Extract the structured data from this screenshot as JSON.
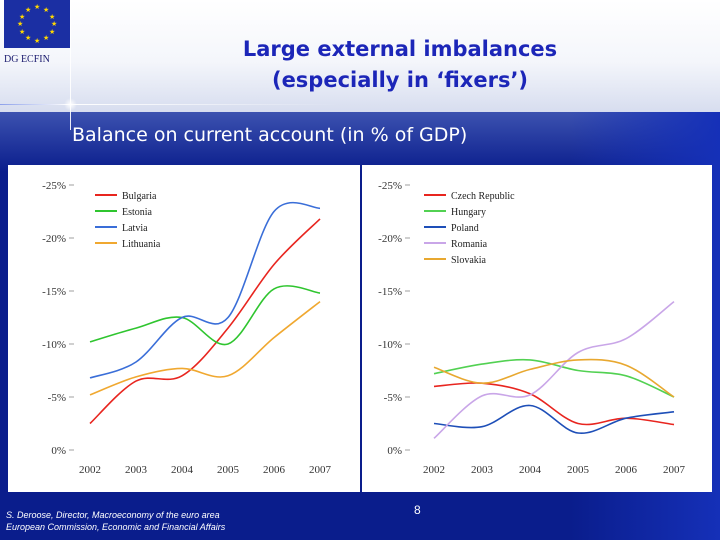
{
  "header": {
    "org_label": "DG ECFIN",
    "title_line1": "Large external imbalances",
    "title_line2": "(especially in ‘fixers’)",
    "subtitle": "Balance on current account (in % of GDP)"
  },
  "footer": {
    "line1": "S. Deroose, Director, Macroeconomy of the euro area",
    "line2": "European Commission, Economic and Financial Affairs",
    "page_number": "8"
  },
  "chart_data": [
    {
      "type": "line",
      "title": "",
      "x": [
        2002,
        2003,
        2004,
        2005,
        2006,
        2007
      ],
      "x_tick_labels": [
        "2002",
        "2003",
        "2004",
        "2005",
        "2006",
        "2007"
      ],
      "y_tick_labels": [
        "-25%",
        "-20%",
        "-15%",
        "-10%",
        "-5%",
        "0%"
      ],
      "ylim": [
        0,
        -25
      ],
      "ylabel": "",
      "legend_position": "top-left",
      "series": [
        {
          "name": "Bulgaria",
          "color": "#e8251f",
          "values": [
            -2.5,
            -6.5,
            -7.0,
            -11.5,
            -17.5,
            -21.8
          ]
        },
        {
          "name": "Estonia",
          "color": "#2fc52f",
          "values": [
            -10.2,
            -11.5,
            -12.5,
            -10.0,
            -15.2,
            -14.8
          ]
        },
        {
          "name": "Latvia",
          "color": "#3a6ed8",
          "values": [
            -6.8,
            -8.3,
            -12.5,
            -12.5,
            -22.5,
            -22.8
          ]
        },
        {
          "name": "Lithuania",
          "color": "#f0a830",
          "values": [
            -5.2,
            -6.9,
            -7.7,
            -7.0,
            -10.6,
            -14.0
          ]
        }
      ]
    },
    {
      "type": "line",
      "title": "",
      "x": [
        2002,
        2003,
        2004,
        2005,
        2006,
        2007
      ],
      "x_tick_labels": [
        "2002",
        "2003",
        "2004",
        "2005",
        "2006",
        "2007"
      ],
      "y_tick_labels": [
        "-25%",
        "-20%",
        "-15%",
        "-10%",
        "-5%",
        "0%"
      ],
      "ylim": [
        0,
        -25
      ],
      "ylabel": "",
      "legend_position": "top-left",
      "series": [
        {
          "name": "Czech Republic",
          "color": "#e8251f",
          "values": [
            -6.0,
            -6.3,
            -5.3,
            -2.5,
            -3.0,
            -2.4
          ]
        },
        {
          "name": "Hungary",
          "color": "#52d152",
          "values": [
            -7.2,
            -8.1,
            -8.5,
            -7.5,
            -7.0,
            -5.0
          ]
        },
        {
          "name": "Poland",
          "color": "#1e4fb8",
          "values": [
            -2.5,
            -2.2,
            -4.2,
            -1.6,
            -3.0,
            -3.6
          ]
        },
        {
          "name": "Romania",
          "color": "#c9a6e8",
          "values": [
            -1.1,
            -5.1,
            -5.2,
            -9.2,
            -10.5,
            -14.0
          ]
        },
        {
          "name": "Slovakia",
          "color": "#e8a830",
          "values": [
            -7.8,
            -6.3,
            -7.6,
            -8.5,
            -8.0,
            -5.0
          ]
        }
      ]
    }
  ]
}
